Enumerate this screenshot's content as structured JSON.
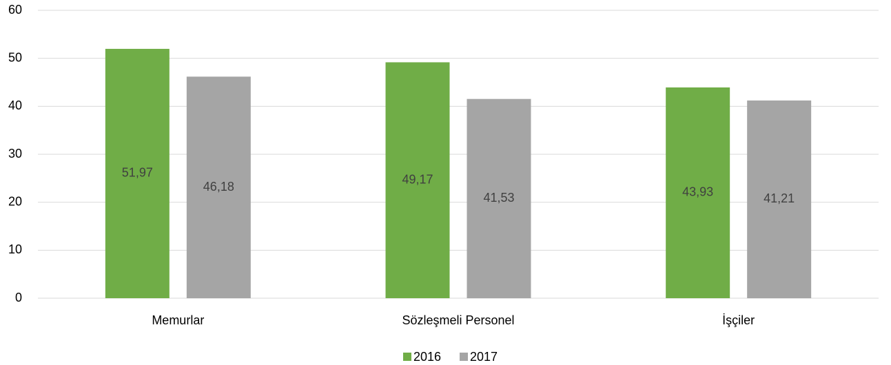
{
  "chart_data": {
    "type": "bar",
    "categories": [
      "Memurlar",
      "Sözleşmeli Personel",
      "İşçiler"
    ],
    "series": [
      {
        "name": "2016",
        "color": "#70ad47",
        "values": [
          51.97,
          49.17,
          43.93
        ],
        "value_labels": [
          "51,97",
          "49,17",
          "43,93"
        ]
      },
      {
        "name": "2017",
        "color": "#a5a5a5",
        "values": [
          46.18,
          41.53,
          41.21
        ],
        "value_labels": [
          "46,18",
          "41,53",
          "41,21"
        ]
      }
    ],
    "ylim": [
      0,
      60
    ],
    "yticks": [
      0,
      10,
      20,
      30,
      40,
      50,
      60
    ],
    "grid": true,
    "legend": "bottom"
  }
}
